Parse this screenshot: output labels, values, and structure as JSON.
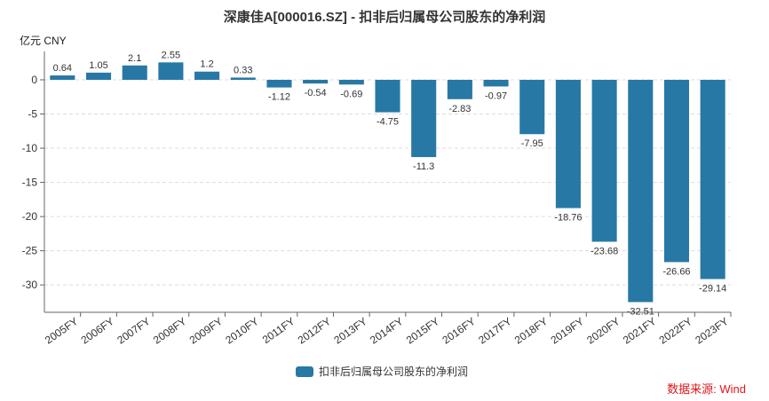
{
  "chart_data": {
    "type": "bar",
    "title": "深康佳A[000016.SZ] - 扣非后归属母公司股东的净利润",
    "ylabel": "亿元  CNY",
    "xlabel": "",
    "categories": [
      "2005FY",
      "2006FY",
      "2007FY",
      "2008FY",
      "2009FY",
      "2010FY",
      "2011FY",
      "2012FY",
      "2013FY",
      "2014FY",
      "2015FY",
      "2016FY",
      "2017FY",
      "2018FY",
      "2019FY",
      "2020FY",
      "2021FY",
      "2022FY",
      "2023FY"
    ],
    "series": [
      {
        "name": "扣非后归属母公司股东的净利润",
        "values": [
          0.64,
          1.05,
          2.1,
          2.55,
          1.2,
          0.33,
          -1.12,
          -0.54,
          -0.69,
          -4.75,
          -11.3,
          -2.83,
          -0.97,
          -7.95,
          -18.76,
          -23.68,
          -32.51,
          -26.66,
          -29.14
        ],
        "labels": [
          "0.64",
          "1.05",
          "2.1",
          "2.55",
          "1.2",
          "0.33",
          "-1.12",
          "-0.54",
          "-0.69",
          "-4.75",
          "-11.3",
          "-2.83",
          "-0.97",
          "-7.95",
          "-18.76",
          "-23.68",
          "-32.51",
          "-26.66",
          "-29.14"
        ],
        "color": "#2878a6"
      }
    ],
    "yticks": [
      0,
      -5,
      -10,
      -15,
      -20,
      -25,
      -30
    ],
    "ytick_labels": [
      "0",
      "-5",
      "-10",
      "-15",
      "-20",
      "-25",
      "-30"
    ],
    "ylim": [
      -34,
      3.5
    ],
    "grid": true,
    "legend_position": "bottom-center"
  },
  "source_note": "数据来源: Wind",
  "colors": {
    "bar": "#2878a6",
    "source": "#e0161b",
    "grid": "#dddddd",
    "axis": "#666666"
  }
}
